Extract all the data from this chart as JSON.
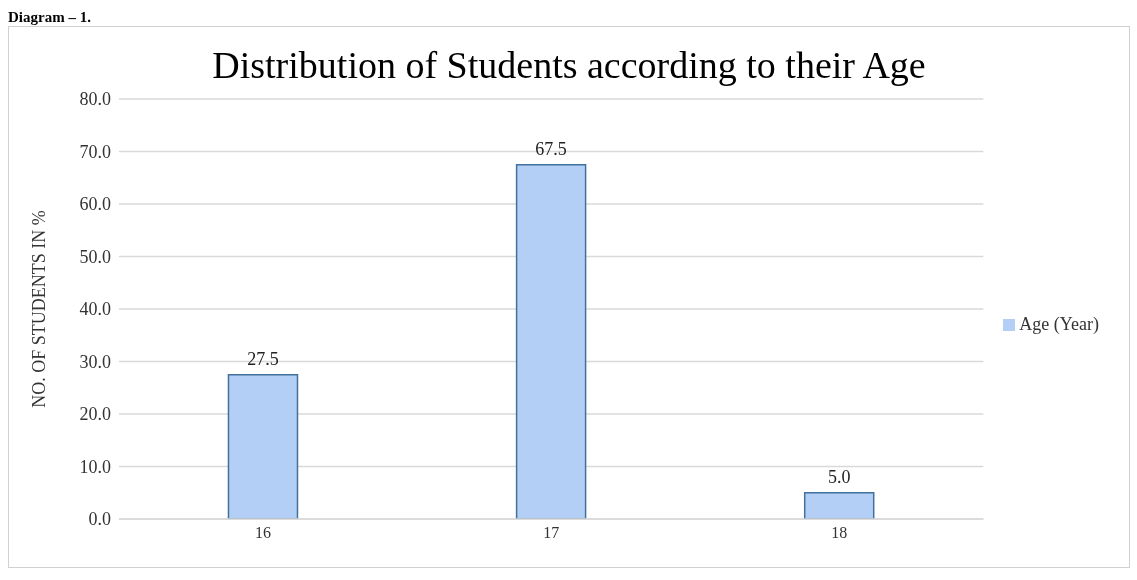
{
  "chart_data": {
    "type": "bar",
    "title": "Distribution of Students according to their Age",
    "ylabel": "NO. OF STUDENTS IN %",
    "annotations": [
      "Diagram – 1."
    ],
    "categories": [
      "16",
      "17",
      "18"
    ],
    "series": [
      {
        "name": "Age (Year)",
        "color": "#b4cff5",
        "values": [
          27.5,
          67.5,
          5.0
        ],
        "value_labels": [
          "27.5",
          "67.5",
          "5.0"
        ]
      }
    ],
    "ylim": [
      0,
      80
    ],
    "yticks": [
      {
        "value": 0,
        "label": "0.0"
      },
      {
        "value": 10,
        "label": "10.0"
      },
      {
        "value": 20,
        "label": "20.0"
      },
      {
        "value": 30,
        "label": "30.0"
      },
      {
        "value": 40,
        "label": "40.0"
      },
      {
        "value": 50,
        "label": "50.0"
      },
      {
        "value": 60,
        "label": "60.0"
      },
      {
        "value": 70,
        "label": "70.0"
      },
      {
        "value": 80,
        "label": "80.0"
      }
    ],
    "grid": "y",
    "legend": "right"
  }
}
